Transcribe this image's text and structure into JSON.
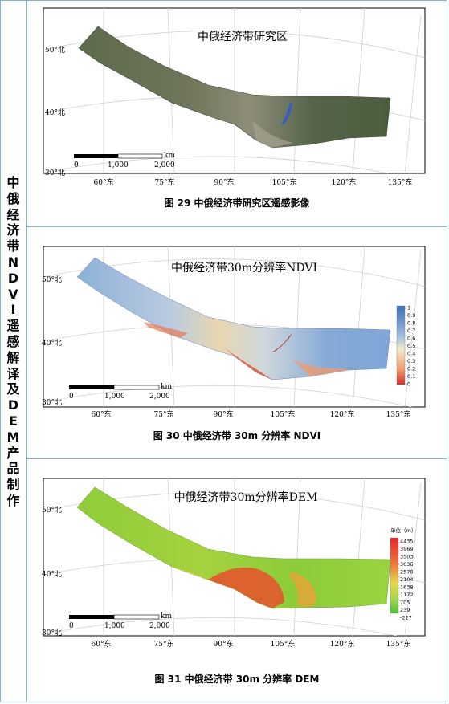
{
  "side_title_chars": [
    "中",
    "俄",
    "经",
    "济",
    "带",
    "N",
    "D",
    "V",
    "I",
    "遥",
    "感",
    "解",
    "译",
    "及",
    "D",
    "E",
    "M",
    "产",
    "品",
    "制",
    "作"
  ],
  "panels": [
    {
      "map_title": "中俄经济带研究区",
      "caption": "图 29  中俄经济带研究区遥感影像",
      "lat_labels": [
        "50°北",
        "40°北",
        "30°北"
      ],
      "lon_labels": [
        "60°东",
        "75°东",
        "90°东",
        "105°东",
        "120°东",
        "135°东"
      ],
      "scale": {
        "unit": "km",
        "ticks": [
          "0",
          "1,000",
          "2,000"
        ]
      },
      "legend": null
    },
    {
      "map_title": "中俄经济带30m分辨率NDVI",
      "caption": "图 30  中俄经济带 30m 分辨率 NDVI",
      "lat_labels": [
        "50°北",
        "40°北",
        "30°北"
      ],
      "lon_labels": [
        "60°东",
        "75°东",
        "90°东",
        "105°东",
        "120°东",
        "135°东"
      ],
      "scale": {
        "unit": "km",
        "ticks": [
          "0",
          "1,000",
          "2,000"
        ]
      },
      "legend": {
        "title": "",
        "values": [
          "1",
          "0.9",
          "0.8",
          "0.7",
          "0.6",
          "0.5",
          "0.4",
          "0.3",
          "0.2",
          "0.1",
          "0"
        ]
      }
    },
    {
      "map_title": "中俄经济带30m分辨率DEM",
      "caption": "图 31  中俄经济带 30m 分辨率 DEM",
      "lat_labels": [
        "50°北",
        "40°北",
        "30°北"
      ],
      "lon_labels": [
        "60°东",
        "75°东",
        "90°东",
        "105°东",
        "120°东",
        "135°东"
      ],
      "scale": {
        "unit": "km",
        "ticks": [
          "0",
          "1,000",
          "2,000"
        ]
      },
      "legend": {
        "title": "单位（m）",
        "values": [
          "4435",
          "3969",
          "3503",
          "3036",
          "2570",
          "2104",
          "1638",
          "1172",
          "705",
          "239",
          "-227"
        ]
      }
    }
  ]
}
